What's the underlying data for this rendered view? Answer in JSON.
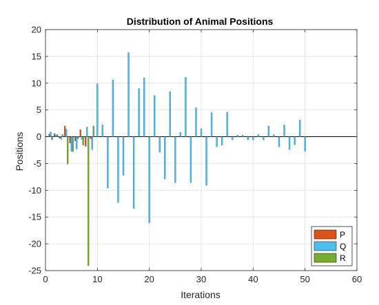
{
  "chart_data": {
    "type": "bar",
    "title": "Distribution of Animal Positions",
    "xlabel": "Iterations",
    "ylabel": "Positions",
    "xlim": [
      0,
      60
    ],
    "ylim": [
      -25,
      20
    ],
    "xticks": [
      0,
      10,
      20,
      30,
      40,
      50,
      60
    ],
    "yticks": [
      -25,
      -20,
      -15,
      -10,
      -5,
      0,
      5,
      10,
      15,
      20
    ],
    "grid": true,
    "legend_position": "bottom-right",
    "series": [
      {
        "name": "P",
        "color": "#d95319",
        "x": [
          1,
          2,
          3,
          4,
          5,
          6,
          7,
          8,
          9
        ],
        "values": [
          0.5,
          0.6,
          -0.3,
          2.0,
          -1.2,
          -0.8,
          1.3,
          -1.8,
          -0.4
        ]
      },
      {
        "name": "Q",
        "color": "#4dbeee",
        "x": [
          1,
          2,
          3,
          4,
          5,
          6,
          7,
          8,
          9,
          10,
          11,
          12,
          13,
          14,
          15,
          16,
          17,
          18,
          19,
          20,
          21,
          22,
          23,
          24,
          25,
          26,
          27,
          28,
          29,
          30,
          31,
          32,
          33,
          34,
          35,
          36,
          37,
          38,
          39,
          40,
          41,
          42,
          43,
          44,
          45,
          46,
          47,
          48,
          49,
          50
        ],
        "values": [
          0.9,
          0.3,
          -0.5,
          1.4,
          -2.7,
          -2.3,
          -0.5,
          1.8,
          -2.4,
          9.9,
          2.2,
          -9.6,
          10.6,
          -12.3,
          -7.2,
          15.7,
          -13.4,
          9.0,
          11.0,
          -16.1,
          7.7,
          -2.9,
          -7.9,
          8.4,
          -8.6,
          0.8,
          11.1,
          -8.6,
          5.4,
          1.5,
          -9.1,
          4.5,
          -1.9,
          -1.6,
          4.6,
          -0.6,
          0.3,
          0.3,
          -0.6,
          -0.6,
          0.4,
          -0.6,
          2.0,
          0.4,
          -1.9,
          2.2,
          -2.4,
          -1.5,
          3.1,
          -2.7
        ]
      },
      {
        "name": "R",
        "color": "#77ac30",
        "x": [
          1,
          2,
          3,
          4,
          5,
          6,
          7,
          8,
          9
        ],
        "values": [
          -0.6,
          0.4,
          0.4,
          -5.1,
          -2.8,
          -0.4,
          -1.6,
          -24.1,
          2.0
        ]
      }
    ]
  }
}
